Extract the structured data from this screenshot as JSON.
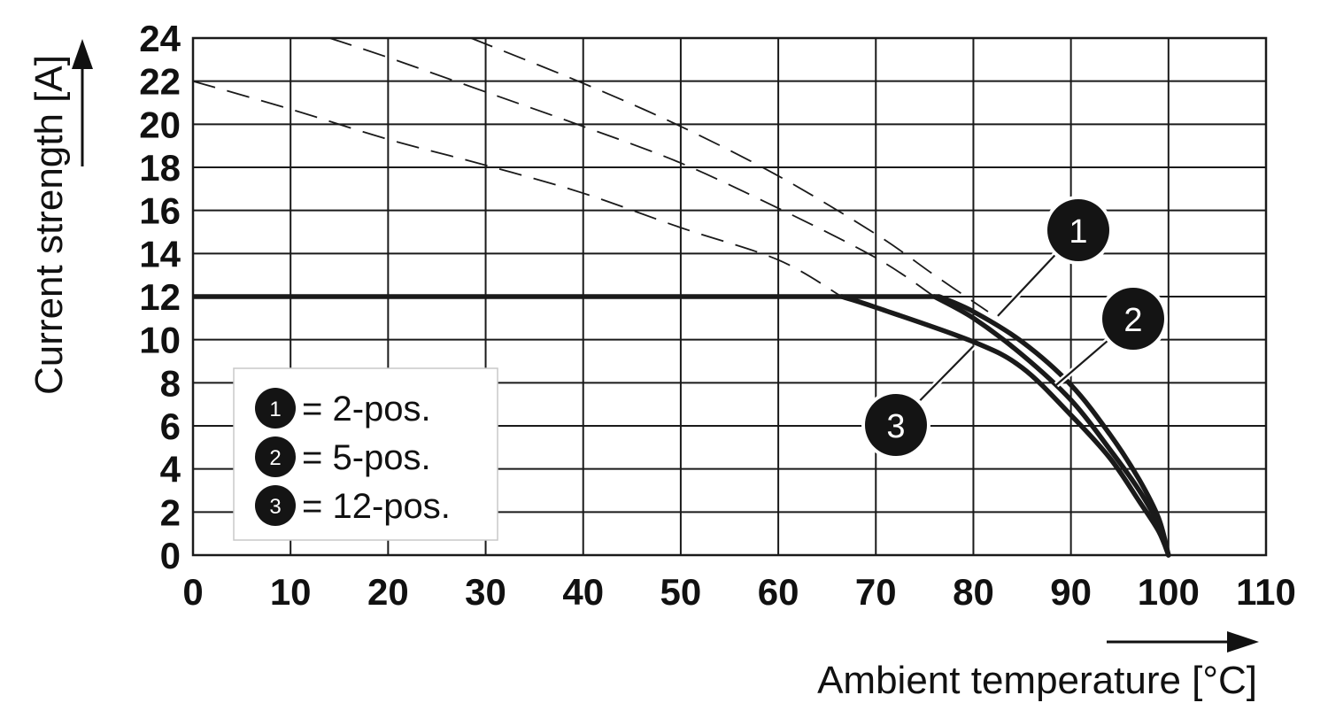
{
  "chart_data": {
    "type": "line",
    "xlabel": "Ambient temperature [°C]",
    "ylabel": "Current strength [A]",
    "xlim": [
      0,
      110
    ],
    "ylim": [
      0,
      24
    ],
    "x_ticks": [
      "0",
      "10",
      "20",
      "30",
      "40",
      "50",
      "60",
      "70",
      "80",
      "90",
      "100",
      "110"
    ],
    "y_ticks": [
      "0",
      "2",
      "4",
      "6",
      "8",
      "10",
      "12",
      "14",
      "16",
      "18",
      "20",
      "22",
      "24"
    ],
    "grid": true,
    "limit": {
      "y": 12
    },
    "series": [
      {
        "name": "2-pos.",
        "badge": "1",
        "dashed": [
          [
            28.5,
            24
          ],
          [
            40,
            21.9
          ],
          [
            50,
            19.9
          ],
          [
            60,
            17.6
          ],
          [
            70,
            14.9
          ],
          [
            76,
            13
          ],
          [
            81.5,
            11.3
          ]
        ],
        "solid": [
          [
            0,
            12
          ],
          [
            76.5,
            12
          ],
          [
            80,
            11.3
          ],
          [
            85,
            9.9
          ],
          [
            90,
            7.9
          ],
          [
            94,
            5.6
          ],
          [
            97,
            3.5
          ],
          [
            99,
            1.7
          ],
          [
            100,
            0
          ]
        ]
      },
      {
        "name": "5-pos.",
        "badge": "2",
        "dashed": [
          [
            14,
            24
          ],
          [
            20,
            23.1
          ],
          [
            30,
            21.5
          ],
          [
            40,
            19.9
          ],
          [
            50,
            18.2
          ],
          [
            60,
            16.1
          ],
          [
            70,
            13.8
          ],
          [
            76,
            12
          ]
        ],
        "solid": [
          [
            0,
            12
          ],
          [
            76,
            12
          ],
          [
            80,
            11
          ],
          [
            85,
            9.3
          ],
          [
            90,
            7.2
          ],
          [
            94,
            4.9
          ],
          [
            97,
            3
          ],
          [
            99,
            1.4
          ],
          [
            100,
            0
          ]
        ]
      },
      {
        "name": "12-pos.",
        "badge": "3",
        "dashed": [
          [
            0,
            22
          ],
          [
            10,
            20.7
          ],
          [
            20,
            19.3
          ],
          [
            30,
            18.1
          ],
          [
            40,
            16.8
          ],
          [
            50,
            15.2
          ],
          [
            60,
            13.7
          ],
          [
            66.5,
            12
          ]
        ],
        "solid": [
          [
            0,
            12
          ],
          [
            66.5,
            12
          ],
          [
            70,
            11.5
          ],
          [
            80,
            9.9
          ],
          [
            85,
            8.7
          ],
          [
            90,
            6.5
          ],
          [
            94,
            4.5
          ],
          [
            97,
            2.5
          ],
          [
            99,
            1.1
          ],
          [
            100,
            0
          ]
        ]
      }
    ],
    "legend": {
      "position": "lower-left",
      "entries": [
        {
          "badge": "1",
          "label": "= 2-pos."
        },
        {
          "badge": "2",
          "label": "= 5-pos."
        },
        {
          "badge": "3",
          "label": "= 12-pos."
        }
      ]
    },
    "colors": {
      "line": "#1a1a1a",
      "grid": "#1a1a1a",
      "badge": "#141414"
    }
  }
}
